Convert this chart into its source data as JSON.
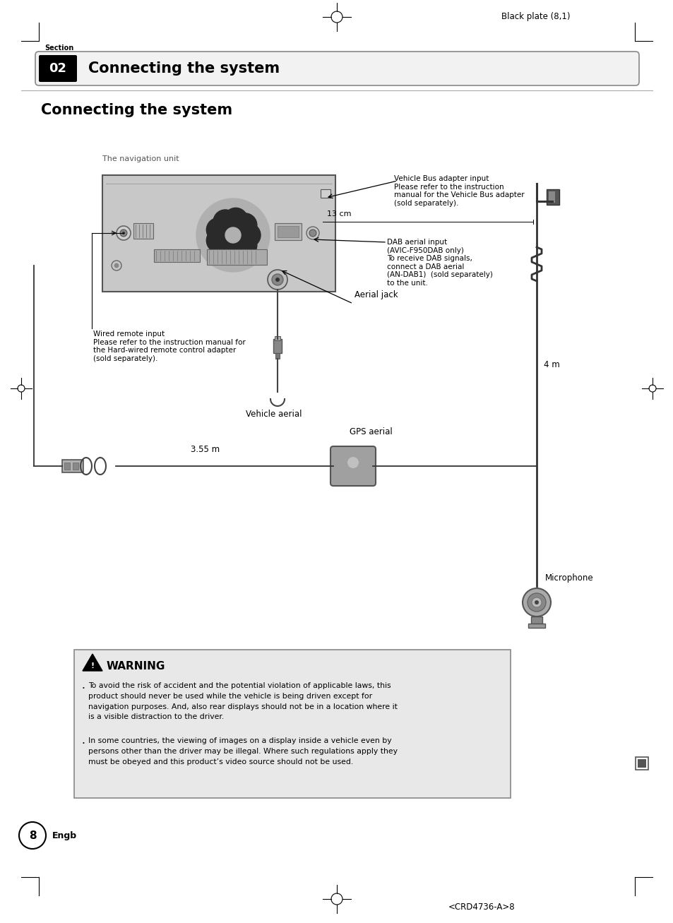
{
  "page_title": "Connecting the system",
  "section_num": "02",
  "section_label": "Section",
  "header_text": "Black plate (8,1)",
  "footer_text": "<CRD4736-A>8",
  "page_num": "8",
  "page_lang": "Engb",
  "section_title": "Connecting the system",
  "labels": {
    "nav_unit": "The navigation unit",
    "vbus": "Vehicle Bus adapter input\nPlease refer to the instruction\nmanual for the Vehicle Bus adapter\n(sold separately).",
    "dab": "DAB aerial input\n(AVIC-F950DAB only)\nTo receive DAB signals,\nconnect a DAB aerial\n(AN-DAB1)  (sold separately)\nto the unit.",
    "wired_remote": "Wired remote input\nPlease refer to the instruction manual for\nthe Hard-wired remote control adapter\n(sold separately).",
    "aerial_jack": "Aerial jack",
    "vehicle_aerial": "Vehicle aerial",
    "gps_aerial": "GPS aerial",
    "microphone": "Microphone",
    "dist_13cm": "13 cm",
    "dist_355m": "3.55 m",
    "dist_4m": "4 m"
  },
  "warning_title": "WARNING",
  "warning_text1": "To avoid the risk of accident and the potential violation of applicable laws, this\nproduct should never be used while the vehicle is being driven except for\nnavigation purposes. And, also rear displays should not be in a location where it\nis a visible distraction to the driver.",
  "warning_text2": "In some countries, the viewing of images on a display inside a vehicle even by\npersons other than the driver may be illegal. Where such regulations apply they\nmust be obeyed and this product’s video source should not be used.",
  "bg_color": "#ffffff",
  "section_bar_bg": "#f0f0f0",
  "section_num_bg": "#000000",
  "warning_bg": "#e8e8e8",
  "unit_color": "#c8c8c8",
  "unit_dark": "#aaaaaa",
  "unit_edge": "#555555"
}
